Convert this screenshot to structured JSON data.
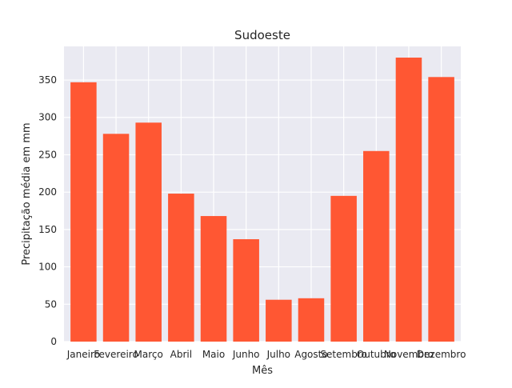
{
  "chart_data": {
    "type": "bar",
    "title": "Sudoeste",
    "xlabel": "Mês",
    "ylabel": "Precipitação média em mm",
    "categories": [
      "Janeiro",
      "Fevereiro",
      "Março",
      "Abril",
      "Maio",
      "Junho",
      "Julho",
      "Agosto",
      "Setembro",
      "Outubro",
      "Novembro",
      "Dezembro"
    ],
    "values": [
      347,
      278,
      293,
      198,
      168,
      137,
      56,
      58,
      195,
      255,
      380,
      354
    ],
    "ylim": [
      0,
      395
    ],
    "yticks": [
      0,
      50,
      100,
      150,
      200,
      250,
      300,
      350
    ],
    "grid": true,
    "colors": {
      "bar": "#ff5733",
      "plot_background": "#eaeaf2",
      "grid": "#ffffff"
    }
  }
}
